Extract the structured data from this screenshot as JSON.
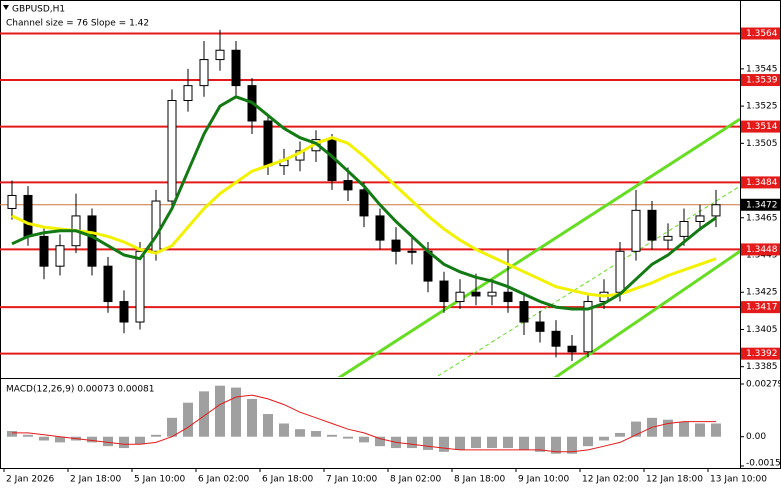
{
  "chart_data": [
    {
      "type": "candlestick",
      "title": "GBPUSD,H1",
      "subtitle": "Channel size = 76 Slope = 1.42",
      "x": [
        2,
        6,
        10,
        14,
        18,
        22,
        26,
        30,
        34,
        38,
        42,
        46,
        50,
        54,
        58,
        62,
        66,
        70,
        74,
        78,
        82,
        86,
        90,
        94,
        98,
        102,
        106,
        110,
        114,
        118,
        122,
        126,
        130,
        134,
        138,
        142,
        146,
        150,
        154,
        158,
        162,
        166,
        170,
        174,
        178
      ],
      "open": [
        1.347,
        1.3477,
        1.3455,
        1.3439,
        1.345,
        1.3466,
        1.3439,
        1.342,
        1.3409,
        1.3447,
        1.3474,
        1.3528,
        1.3536,
        1.355,
        1.3555,
        1.3536,
        1.3517,
        1.3493,
        1.3496,
        1.3501,
        1.3507,
        1.3485,
        1.348,
        1.3466,
        1.3453,
        1.3447,
        1.3447,
        1.3431,
        1.342,
        1.3425,
        1.3423,
        1.3425,
        1.342,
        1.3409,
        1.3404,
        1.3396,
        1.3393,
        1.342,
        1.3425,
        1.3447,
        1.3469,
        1.3453,
        1.3455,
        1.3463,
        1.3466
      ],
      "high": [
        1.3485,
        1.3482,
        1.346,
        1.3456,
        1.3478,
        1.347,
        1.3444,
        1.3426,
        1.3452,
        1.348,
        1.3534,
        1.3545,
        1.356,
        1.3566,
        1.356,
        1.354,
        1.352,
        1.3502,
        1.3506,
        1.3512,
        1.351,
        1.3492,
        1.3484,
        1.347,
        1.346,
        1.3455,
        1.3452,
        1.3436,
        1.3432,
        1.3435,
        1.3432,
        1.3448,
        1.3424,
        1.3415,
        1.341,
        1.3402,
        1.3424,
        1.3432,
        1.3452,
        1.348,
        1.3474,
        1.3462,
        1.347,
        1.3472,
        1.348
      ],
      "low": [
        1.3464,
        1.345,
        1.3432,
        1.3434,
        1.3446,
        1.3434,
        1.3414,
        1.3403,
        1.3405,
        1.3442,
        1.347,
        1.3522,
        1.353,
        1.3544,
        1.353,
        1.351,
        1.3488,
        1.3488,
        1.349,
        1.3495,
        1.348,
        1.3474,
        1.346,
        1.3448,
        1.344,
        1.344,
        1.3425,
        1.3414,
        1.3416,
        1.3418,
        1.3418,
        1.3414,
        1.3402,
        1.3398,
        1.339,
        1.3388,
        1.339,
        1.3416,
        1.342,
        1.3442,
        1.3448,
        1.3448,
        1.345,
        1.3458,
        1.346
      ],
      "close": [
        1.3477,
        1.3455,
        1.3439,
        1.345,
        1.3466,
        1.3439,
        1.342,
        1.3409,
        1.3447,
        1.3474,
        1.3528,
        1.3536,
        1.355,
        1.3555,
        1.3536,
        1.3517,
        1.3493,
        1.3496,
        1.3501,
        1.3507,
        1.3485,
        1.348,
        1.3466,
        1.3453,
        1.3447,
        1.3447,
        1.3431,
        1.342,
        1.3425,
        1.3423,
        1.3425,
        1.342,
        1.3409,
        1.3404,
        1.3396,
        1.3393,
        1.342,
        1.3425,
        1.3447,
        1.3469,
        1.3453,
        1.3455,
        1.3463,
        1.3466,
        1.3472
      ],
      "series": [
        {
          "color": "#f2f200",
          "values": [
            1.3466,
            1.3462,
            1.346,
            1.3459,
            1.3458,
            1.3457,
            1.3455,
            1.3452,
            1.3448,
            1.3446,
            1.345,
            1.346,
            1.347,
            1.3478,
            1.3484,
            1.349,
            1.3493,
            1.3496,
            1.35,
            1.3505,
            1.3508,
            1.3505,
            1.3498,
            1.349,
            1.3482,
            1.3474,
            1.3466,
            1.3459,
            1.3453,
            1.3448,
            1.3444,
            1.344,
            1.3436,
            1.3432,
            1.3428,
            1.3426,
            1.3424,
            1.3423,
            1.3424,
            1.3427,
            1.343,
            1.3434,
            1.3437,
            1.344,
            1.3443
          ]
        },
        {
          "color": "#137a13",
          "values": [
            1.3451,
            1.3455,
            1.3457,
            1.3458,
            1.3458,
            1.3455,
            1.345,
            1.3445,
            1.3443,
            1.3455,
            1.347,
            1.349,
            1.351,
            1.3525,
            1.353,
            1.3527,
            1.352,
            1.3513,
            1.3508,
            1.3505,
            1.3498,
            1.349,
            1.3482,
            1.3472,
            1.3463,
            1.3455,
            1.3447,
            1.344,
            1.3436,
            1.3433,
            1.3431,
            1.3428,
            1.3424,
            1.342,
            1.3417,
            1.3416,
            1.3416,
            1.3419,
            1.3424,
            1.3432,
            1.344,
            1.3445,
            1.3452,
            1.3459,
            1.3465
          ]
        }
      ],
      "channels": [
        {
          "color": "#66dd22",
          "dashed": false,
          "x": [
            83,
            184
          ],
          "y": [
            1.3378,
            1.3518
          ]
        },
        {
          "color": "#66dd22",
          "dashed": false,
          "x": [
            137,
            184
          ],
          "y": [
            1.3378,
            1.3447
          ]
        },
        {
          "color": "#66dd22",
          "dashed": true,
          "x": [
            107,
            184
          ],
          "y": [
            1.3378,
            1.3482
          ]
        }
      ],
      "levels": [
        {
          "value": 1.3564,
          "color": "#e41a1a"
        },
        {
          "value": 1.3539,
          "color": "#e41a1a"
        },
        {
          "value": 1.3514,
          "color": "#e41a1a"
        },
        {
          "value": 1.3484,
          "color": "#e41a1a"
        },
        {
          "value": 1.3448,
          "color": "#e41a1a"
        },
        {
          "value": 1.3417,
          "color": "#e41a1a"
        },
        {
          "value": 1.3392,
          "color": "#e41a1a"
        }
      ],
      "last_price": 1.3472,
      "last_color": "#c8763a",
      "xlim": [
        -1,
        184
      ],
      "ylim": [
        1.338,
        1.3582
      ],
      "yticks": [
        1.3385,
        1.3405,
        1.3425,
        1.3445,
        1.3465,
        1.3505,
        1.3525,
        1.3545
      ],
      "xticks": [
        {
          "value": 0,
          "label": "2 Jan 2026"
        },
        {
          "value": 16,
          "label": "2 Jan 18:00"
        },
        {
          "value": 32,
          "label": "5 Jan 10:00"
        },
        {
          "value": 48,
          "label": "6 Jan 02:00"
        },
        {
          "value": 64,
          "label": "6 Jan 18:00"
        },
        {
          "value": 80,
          "label": "7 Jan 10:00"
        },
        {
          "value": 96,
          "label": "8 Jan 02:00"
        },
        {
          "value": 112,
          "label": "8 Jan 18:00"
        },
        {
          "value": 128,
          "label": "9 Jan 10:00"
        },
        {
          "value": 144,
          "label": "12 Jan 02:00"
        },
        {
          "value": 160,
          "label": "12 Jan 18:00"
        },
        {
          "value": 176,
          "label": "13 Jan 10:00"
        }
      ]
    },
    {
      "type": "macd",
      "title": "MACD(12,26,9) 0.00073 0.00081",
      "x": [
        2,
        6,
        10,
        14,
        18,
        22,
        26,
        30,
        34,
        38,
        42,
        46,
        50,
        54,
        58,
        62,
        66,
        70,
        74,
        78,
        82,
        86,
        90,
        94,
        98,
        102,
        106,
        110,
        114,
        118,
        122,
        126,
        130,
        134,
        138,
        142,
        146,
        150,
        154,
        158,
        162,
        166,
        170,
        174,
        178
      ],
      "histogram": {
        "color": "#a0a0a0",
        "values": [
          0.0003,
          0.0001,
          -0.0002,
          -0.0003,
          -0.0002,
          -0.0003,
          -0.0005,
          -0.0006,
          -0.0004,
          0.0001,
          0.001,
          0.0018,
          0.0024,
          0.0027,
          0.0026,
          0.002,
          0.0012,
          0.0007,
          0.0004,
          0.0003,
          0.0001,
          -0.0001,
          -0.0003,
          -0.0005,
          -0.0006,
          -0.0006,
          -0.0007,
          -0.0008,
          -0.0007,
          -0.0006,
          -0.0006,
          -0.0006,
          -0.0007,
          -0.0008,
          -0.0009,
          -0.0009,
          -0.0005,
          -0.0002,
          0.0002,
          0.0008,
          0.001,
          0.0009,
          0.0008,
          0.0007,
          0.0007
        ]
      },
      "signal": {
        "color": "#e41a1a",
        "values": [
          0.0002,
          0.0002,
          0.0001,
          0,
          -0.0001,
          -0.0002,
          -0.0003,
          -0.0004,
          -0.0004,
          -0.0003,
          0,
          0.0005,
          0.0011,
          0.0017,
          0.0021,
          0.0022,
          0.002,
          0.0017,
          0.0013,
          0.001,
          0.0007,
          0.0004,
          0.0002,
          -0.0001,
          -0.0003,
          -0.0004,
          -0.0005,
          -0.0006,
          -0.0007,
          -0.0007,
          -0.0007,
          -0.0007,
          -0.0007,
          -0.0007,
          -0.0008,
          -0.0008,
          -0.0007,
          -0.0005,
          -0.0003,
          0.0001,
          0.0005,
          0.0007,
          0.0008,
          0.0008,
          0.0008
        ]
      },
      "xlim": [
        -1,
        184
      ],
      "ylim": [
        -0.00155,
        0.00279
      ],
      "yticks": [
        0.00279,
        {
          "value": 0,
          "label": "0.00"
        },
        -0.00155
      ]
    }
  ]
}
